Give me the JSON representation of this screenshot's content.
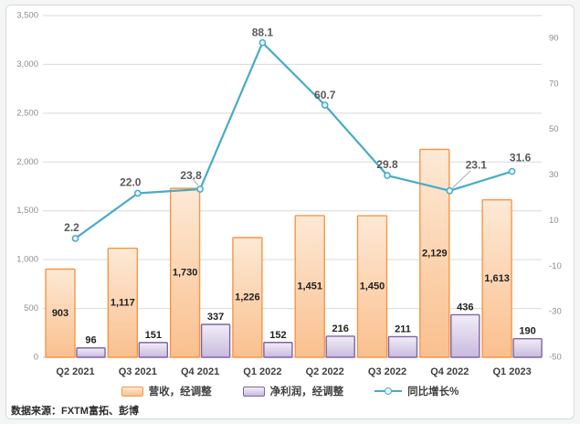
{
  "page": {
    "background": "#F4F6F6",
    "panel_background": "#FFFFFF",
    "panel_border": "#D8DADB"
  },
  "source_note": "数据来源：FXTM富拓、彭博",
  "colors": {
    "revenue_fill_top": "#FDE9D6",
    "revenue_fill_bottom": "#FAC08E",
    "revenue_border": "#F79646",
    "profit_fill_top": "#F1EEF7",
    "profit_fill_bottom": "#C9B9DE",
    "profit_border": "#8064A2",
    "growth_line": "#46ABC9",
    "growth_marker_fill": "#EAF5F9",
    "gridline": "#D9D9D9",
    "axis_line": "#BFBFBF",
    "tick_text": "#8C8C8C",
    "bar_label_text": "#1F1F1F",
    "line_label_text": "#595959",
    "leader_line": "#ADADAD"
  },
  "chart_data": {
    "type": "combo (bar + line)",
    "title": "",
    "categories": [
      "Q2 2021",
      "Q3 2021",
      "Q4 2021",
      "Q1 2022",
      "Q2 2022",
      "Q3 2022",
      "Q4 2022",
      "Q1 2023"
    ],
    "series": [
      {
        "name": "营收，经调整",
        "type": "bar",
        "axis": "left",
        "values": [
          903,
          1117,
          1730,
          1226,
          1451,
          1450,
          2129,
          1613
        ],
        "value_labels": [
          "903",
          "1,117",
          "1,730",
          "1,226",
          "1,451",
          "1,450",
          "2,129",
          "1,613"
        ]
      },
      {
        "name": "净利润，经调整",
        "type": "bar",
        "axis": "left",
        "values": [
          96,
          151,
          337,
          152,
          216,
          211,
          436,
          190
        ],
        "value_labels": [
          "96",
          "151",
          "337",
          "152",
          "216",
          "211",
          "436",
          "190"
        ]
      },
      {
        "name": "同比增长%",
        "type": "line",
        "axis": "right",
        "values": [
          2.2,
          22.0,
          23.8,
          88.1,
          60.7,
          29.8,
          23.1,
          31.6
        ],
        "value_labels": [
          "2.2",
          "22.0",
          "23.8",
          "88.1",
          "60.7",
          "29.8",
          "23.1",
          "31.6"
        ]
      }
    ],
    "left_axis": {
      "min": 0,
      "max": 3500,
      "step": 500,
      "tick_labels": [
        "0",
        "500",
        "1,000",
        "1,500",
        "2,000",
        "2,500",
        "3,000",
        "3,500"
      ]
    },
    "right_axis": {
      "min": -50,
      "max": 100,
      "step": 20,
      "tick_labels": [
        "-50",
        "-30",
        "-10",
        "10",
        "30",
        "50",
        "70",
        "90"
      ],
      "tick_values": [
        -50,
        -30,
        -10,
        10,
        30,
        50,
        70,
        90
      ]
    },
    "grid": true,
    "legend_position": "bottom"
  }
}
